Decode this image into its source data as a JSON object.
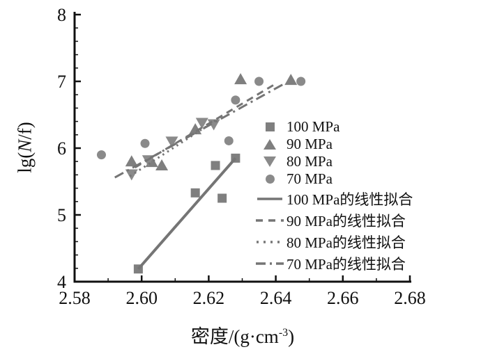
{
  "colors": {
    "marker_dark": "#7f7f7f",
    "marker_light": "#8a8a8a",
    "fit_line": "#757575",
    "axis": "#111111",
    "text": "#111111",
    "background": "#ffffff"
  },
  "axes": {
    "x_title": {
      "prefix": "密度/(g·cm",
      "sup": "-3",
      "suffix": ")"
    },
    "y_title": {
      "prefix": "lg(",
      "italic": "N",
      "suffix": "/f)"
    }
  },
  "legend": {
    "items": [
      {
        "label": "100 MPa",
        "marker": "square"
      },
      {
        "label": "90 MPa",
        "marker": "triangle-up"
      },
      {
        "label": "80 MPa",
        "marker": "triangle-down"
      },
      {
        "label": "70 MPa",
        "marker": "circle"
      },
      {
        "label": "100 MPa的线性拟合",
        "line": "solid"
      },
      {
        "label": "90 MPa的线性拟合",
        "line": "dashed"
      },
      {
        "label": "80 MPa的线性拟合",
        "line": "dotted"
      },
      {
        "label": "70 MPa的线性拟合",
        "line": "dashdot"
      }
    ]
  },
  "chart_data": {
    "type": "scatter",
    "title": "",
    "xlabel": "密度/(g·cm⁻³)",
    "ylabel": "lg(N/f)",
    "xlim": [
      2.58,
      2.68
    ],
    "ylim": [
      4,
      8
    ],
    "grid": false,
    "legend_position": "right-center",
    "x_tick_labels": [
      "2.58",
      "2.60",
      "2.62",
      "2.64",
      "2.66",
      "2.68"
    ],
    "x_major_ticks": [
      2.58,
      2.6,
      2.62,
      2.64,
      2.66,
      2.68
    ],
    "x_minor_step": 0.01,
    "y_tick_labels": [
      "4",
      "5",
      "6",
      "7",
      "8"
    ],
    "y_major_ticks": [
      4,
      5,
      6,
      7,
      8
    ],
    "y_minor_step": 0.2,
    "series": [
      {
        "name": "100 MPa",
        "marker": "square",
        "color": "#7f7f7f",
        "points": [
          [
            2.599,
            4.19
          ],
          [
            2.616,
            5.33
          ],
          [
            2.622,
            5.74
          ],
          [
            2.624,
            5.25
          ],
          [
            2.628,
            5.85
          ]
        ]
      },
      {
        "name": "90 MPa",
        "marker": "triangle-up",
        "color": "#7f7f7f",
        "points": [
          [
            2.597,
            5.8
          ],
          [
            2.603,
            5.79
          ],
          [
            2.606,
            5.74
          ],
          [
            2.616,
            6.28
          ],
          [
            2.6295,
            7.03
          ],
          [
            2.6445,
            7.02
          ]
        ]
      },
      {
        "name": "80 MPa",
        "marker": "triangle-down",
        "color": "#8a8a8a",
        "points": [
          [
            2.597,
            5.61
          ],
          [
            2.602,
            5.82
          ],
          [
            2.609,
            6.1
          ],
          [
            2.618,
            6.38
          ],
          [
            2.6215,
            6.36
          ]
        ]
      },
      {
        "name": "70 MPa",
        "marker": "circle",
        "color": "#8a8a8a",
        "points": [
          [
            2.588,
            5.9
          ],
          [
            2.601,
            6.07
          ],
          [
            2.626,
            6.11
          ],
          [
            2.628,
            6.72
          ],
          [
            2.635,
            7.0
          ],
          [
            2.6475,
            7.0
          ]
        ]
      }
    ],
    "fits": [
      {
        "name": "100 MPa的线性拟合",
        "style": "solid",
        "x": [
          2.599,
          2.628
        ],
        "y": [
          4.19,
          5.85
        ]
      },
      {
        "name": "90 MPa的线性拟合",
        "style": "dashed",
        "x": [
          2.598,
          2.6405
        ],
        "y": [
          5.71,
          6.98
        ]
      },
      {
        "name": "80 MPa的线性拟合",
        "style": "dotted",
        "x": [
          2.5965,
          2.6225
        ],
        "y": [
          5.58,
          6.43
        ]
      },
      {
        "name": "70 MPa的线性拟合",
        "style": "dashdot",
        "x": [
          2.592,
          2.642
        ],
        "y": [
          5.56,
          6.95
        ]
      }
    ]
  }
}
